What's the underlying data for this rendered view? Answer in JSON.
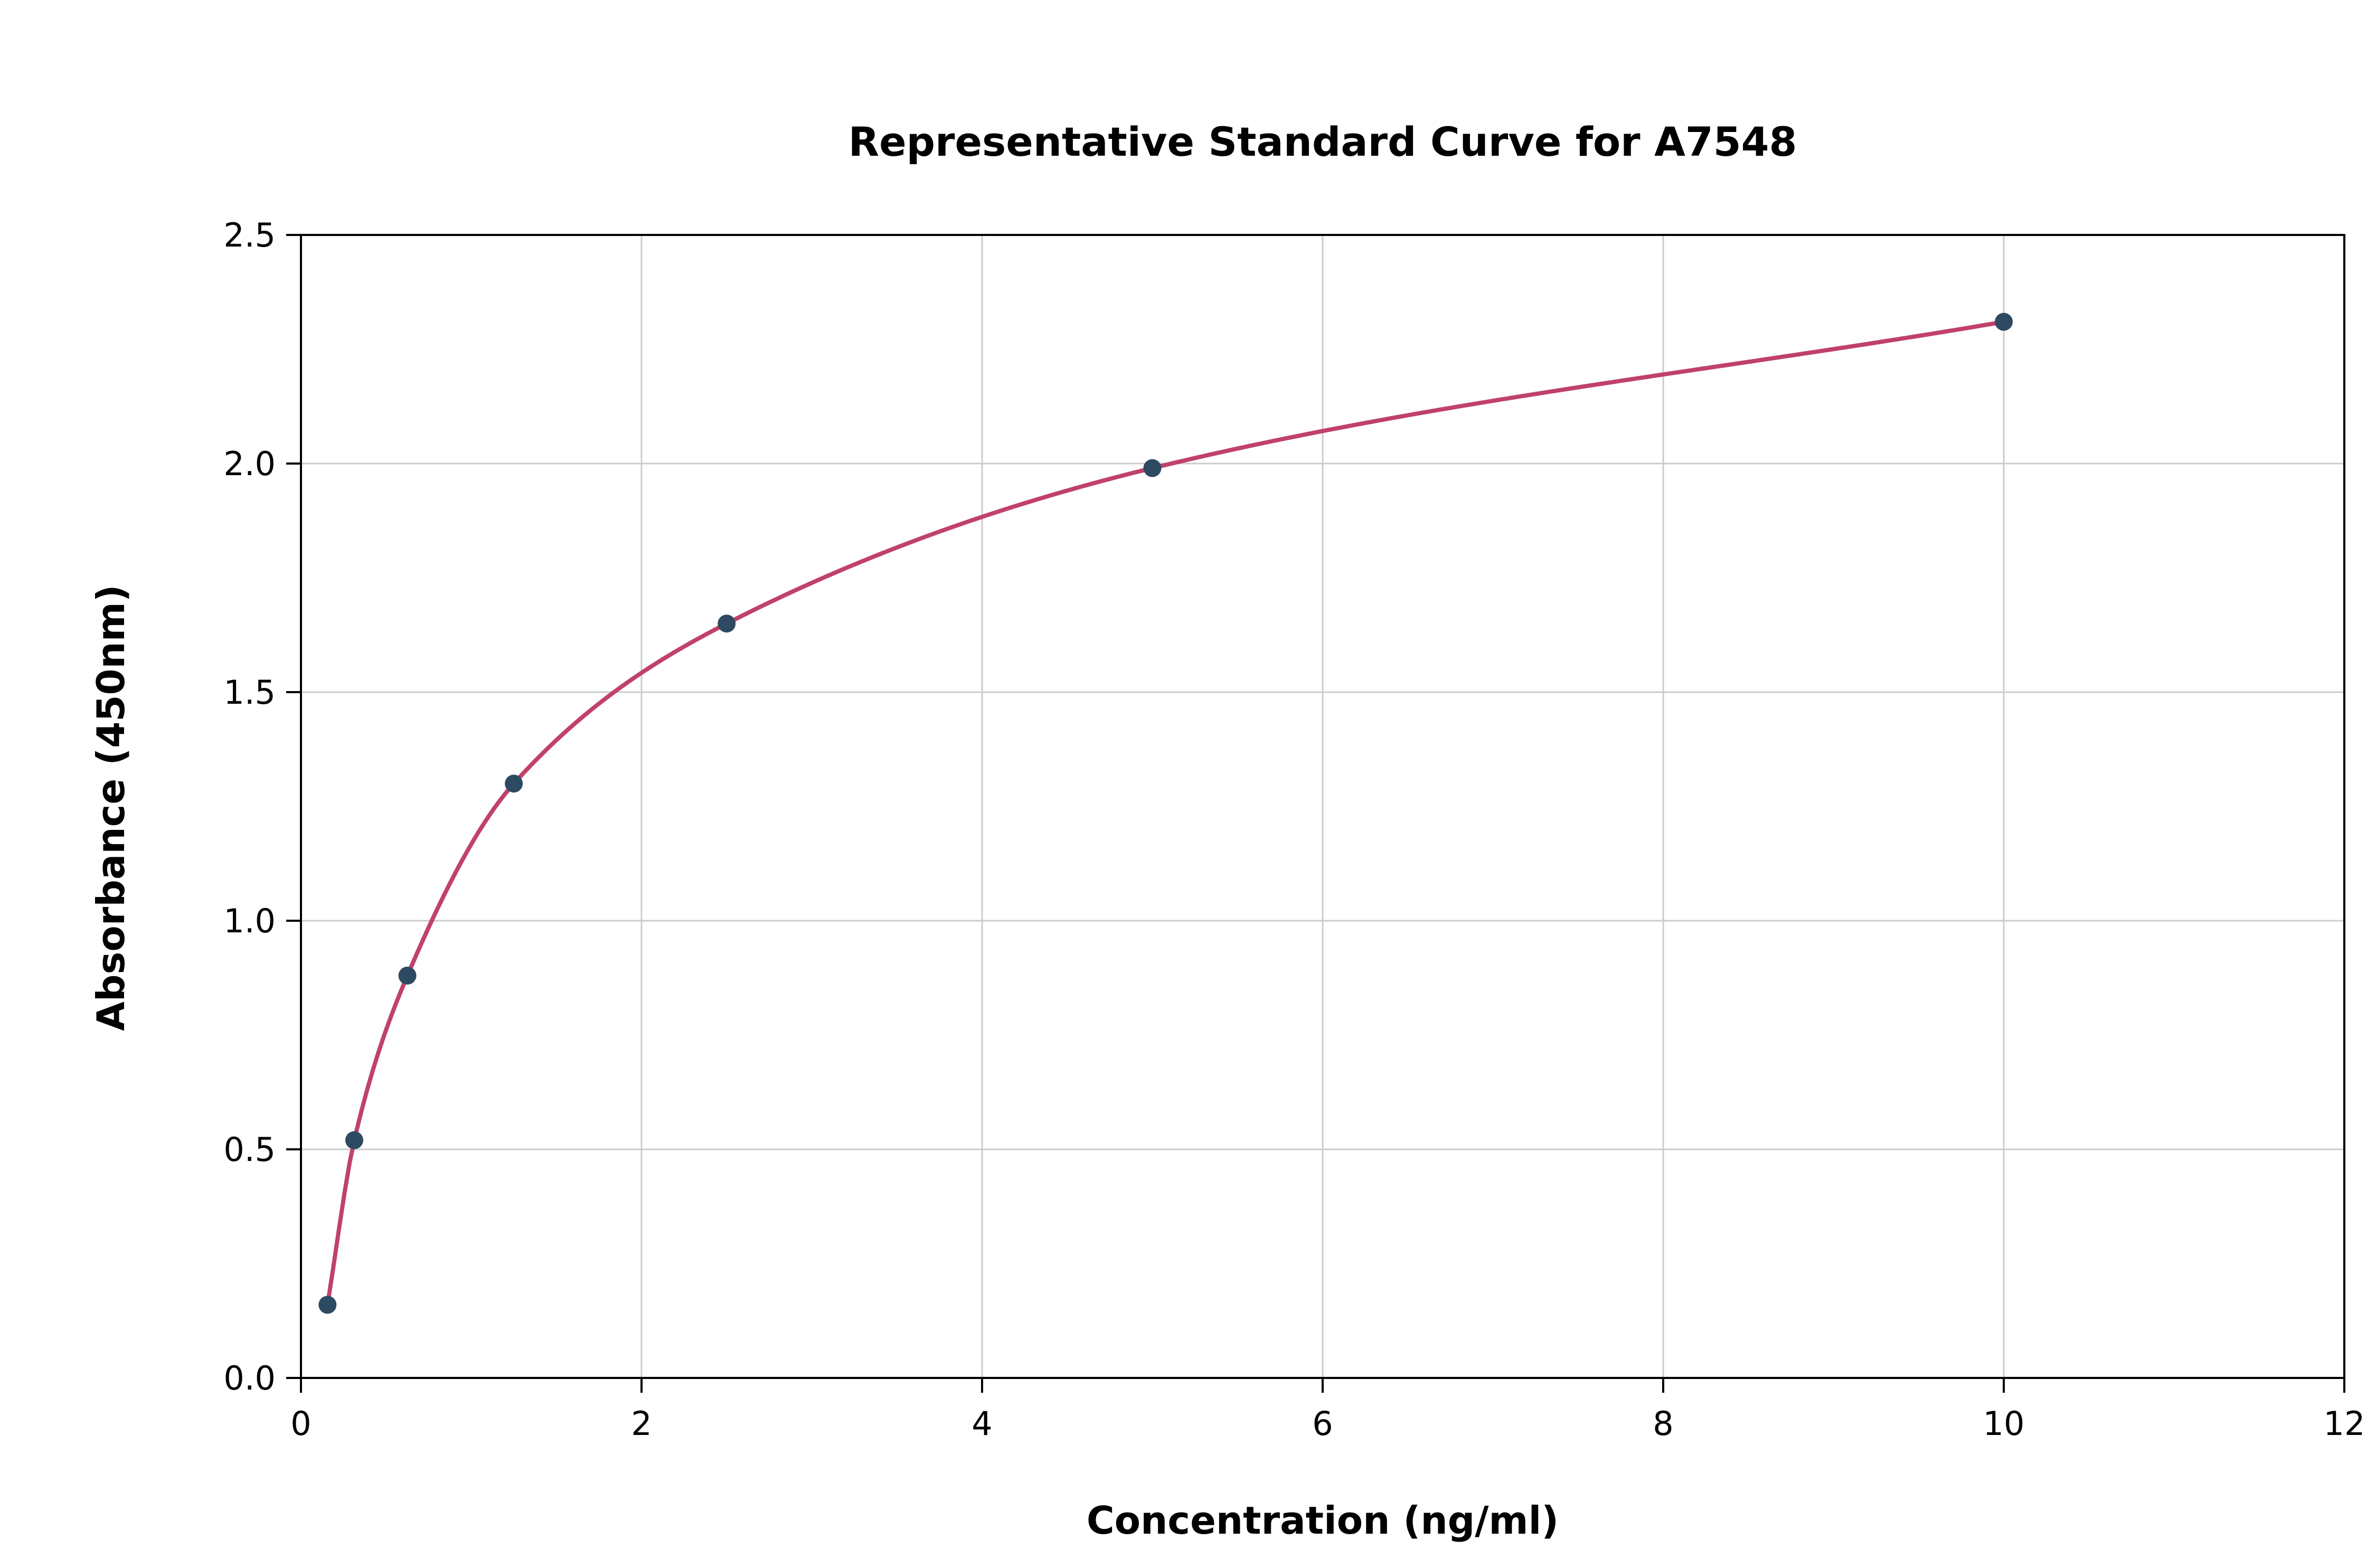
{
  "chart_data": {
    "type": "line",
    "title": "Representative Standard Curve for A7548",
    "xlabel": "Concentration (ng/ml)",
    "ylabel": "Absorbance (450nm)",
    "x": [
      0.156,
      0.313,
      0.625,
      1.25,
      2.5,
      5.0,
      10.0
    ],
    "y": [
      0.16,
      0.52,
      0.88,
      1.3,
      1.65,
      1.99,
      2.31
    ],
    "xlim": [
      0,
      12
    ],
    "ylim": [
      0.0,
      2.5
    ],
    "xticks": [
      0,
      2,
      4,
      6,
      8,
      10,
      12
    ],
    "yticks": [
      0.0,
      0.5,
      1.0,
      1.5,
      2.0,
      2.5
    ],
    "xtick_labels": [
      "0",
      "2",
      "4",
      "6",
      "8",
      "10",
      "12"
    ],
    "ytick_labels": [
      "0.0",
      "0.5",
      "1.0",
      "1.5",
      "2.0",
      "2.5"
    ],
    "grid": true,
    "legend": "none",
    "colors": {
      "line": "#c0416b",
      "marker": "#2e4a62",
      "grid": "#cccccc",
      "axis": "#000000",
      "background": "#ffffff"
    }
  }
}
